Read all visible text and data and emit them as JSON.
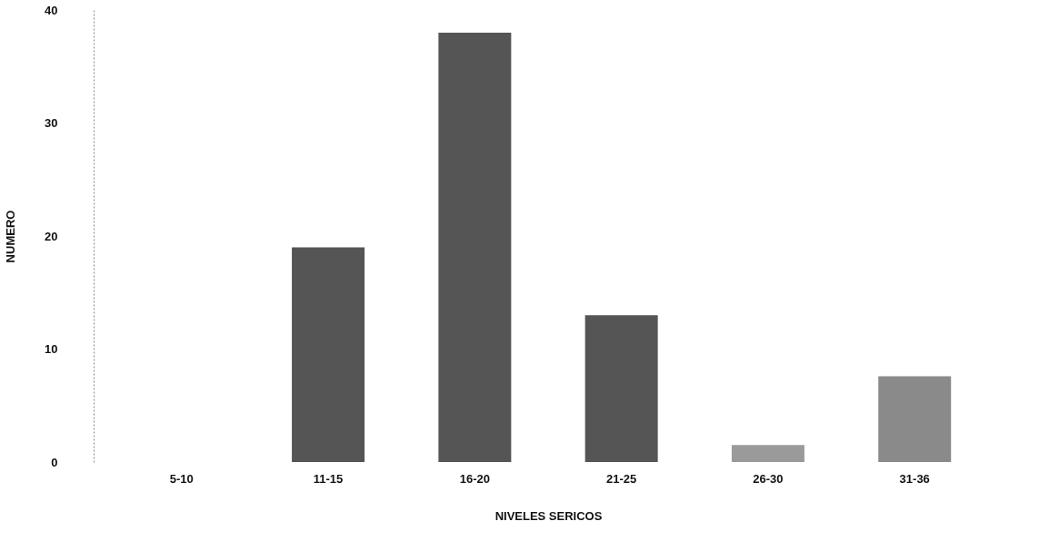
{
  "chart_data": {
    "type": "bar",
    "xlabel": "NIVELES SERICOS",
    "ylabel": "NUMERO",
    "categories": [
      "5-10",
      "11-15",
      "16-20",
      "21-25",
      "26-30",
      "31-36"
    ],
    "values": [
      0,
      19,
      38,
      13,
      1.5,
      7.6
    ],
    "colors": [
      "#555555",
      "#555555",
      "#555555",
      "#555555",
      "#9a9a9a",
      "#8a8a8a"
    ],
    "ylim": [
      0,
      40
    ],
    "yticks": [
      0,
      10,
      20,
      30,
      40
    ],
    "grid": false
  }
}
